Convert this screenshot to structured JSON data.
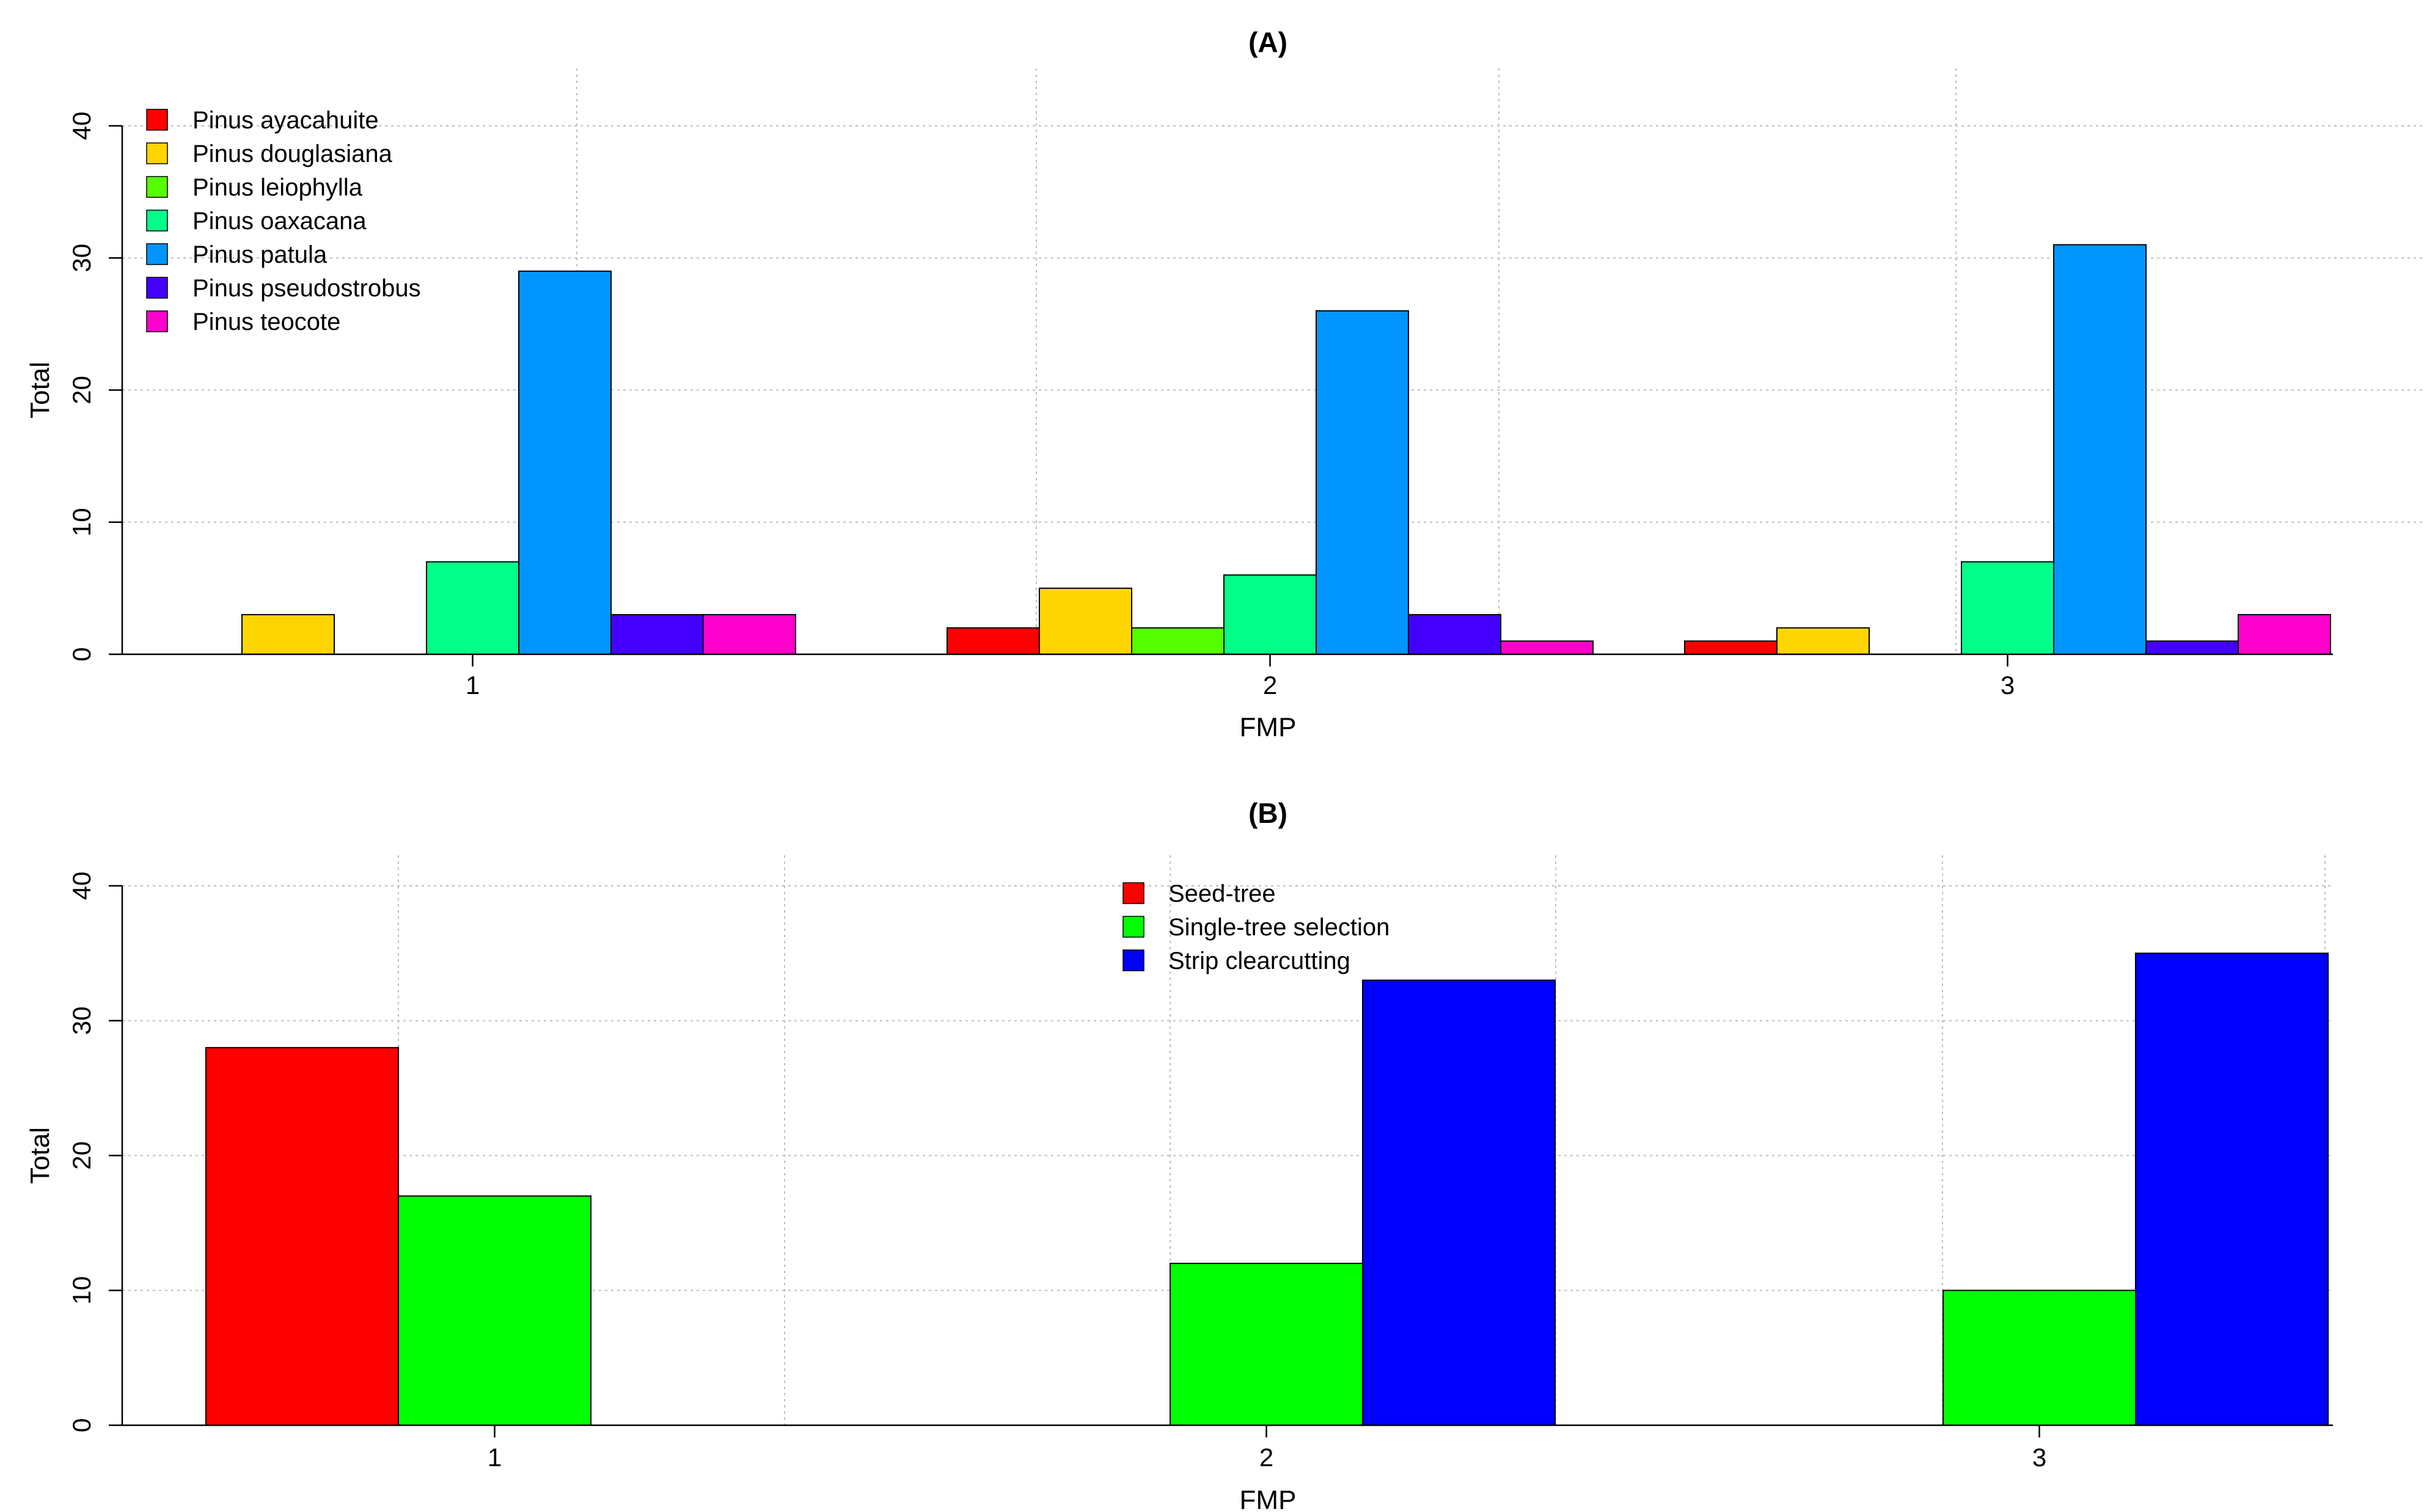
{
  "chart_data": [
    {
      "type": "bar",
      "title": "(A)",
      "xlabel": "FMP",
      "ylabel": "Total",
      "ylim": [
        0,
        40
      ],
      "yticks": [
        0,
        10,
        20,
        30,
        40
      ],
      "grid": true,
      "legend_position": "top-left",
      "categories": [
        "1",
        "2",
        "3"
      ],
      "series": [
        {
          "name": "Pinus ayacahuite",
          "color": "#ff0000",
          "values": [
            0,
            2,
            1
          ]
        },
        {
          "name": "Pinus douglasiana",
          "color": "#ffd500",
          "values": [
            3,
            5,
            2
          ]
        },
        {
          "name": "Pinus leiophylla",
          "color": "#55ff00",
          "values": [
            0,
            2,
            0
          ]
        },
        {
          "name": "Pinus oaxacana",
          "color": "#00ff88",
          "values": [
            7,
            6,
            7
          ]
        },
        {
          "name": "Pinus patula",
          "color": "#0095ff",
          "values": [
            29,
            26,
            31
          ]
        },
        {
          "name": "Pinus pseudostrobus",
          "color": "#4400ff",
          "values": [
            3,
            3,
            1
          ]
        },
        {
          "name": "Pinus teocote",
          "color": "#ff00cc",
          "values": [
            3,
            1,
            3
          ]
        }
      ]
    },
    {
      "type": "bar",
      "title": "(B)",
      "xlabel": "FMP",
      "ylabel": "Total",
      "ylim": [
        0,
        40
      ],
      "yticks": [
        0,
        10,
        20,
        30,
        40
      ],
      "grid": true,
      "legend_position": "top-center",
      "categories": [
        "1",
        "2",
        "3"
      ],
      "series": [
        {
          "name": "Seed-tree",
          "color": "#ff0000",
          "values": [
            28,
            0,
            0
          ]
        },
        {
          "name": "Single-tree selection",
          "color": "#00ff00",
          "values": [
            17,
            12,
            10
          ]
        },
        {
          "name": "Strip clearcutting",
          "color": "#0000ff",
          "values": [
            0,
            33,
            35
          ]
        }
      ]
    }
  ]
}
